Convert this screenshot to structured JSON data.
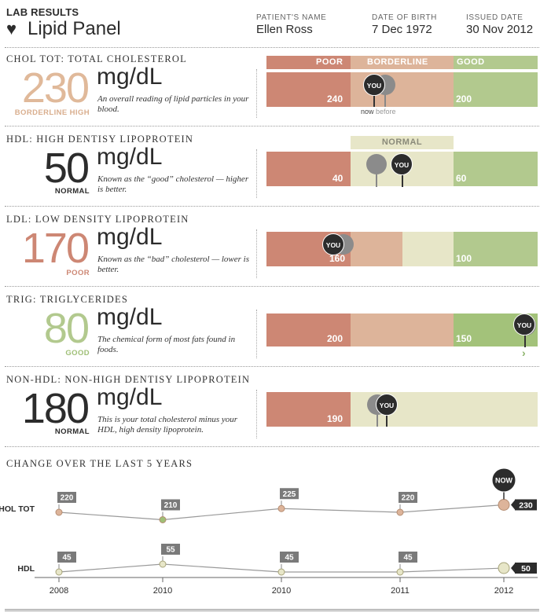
{
  "header": {
    "lab_results": "LAB RESULTS",
    "title": "Lipid Panel",
    "patient_label": "PATIENT'S NAME",
    "patient_name": "Ellen Ross",
    "dob_label": "DATE OF BIRTH",
    "dob": "7 Dec 1972",
    "issued_label": "ISSUED DATE",
    "issued": "30 Nov 2012"
  },
  "legend": {
    "poor": "POOR",
    "borderline": "BORDERLINE",
    "good": "GOOD",
    "normal": "NORMAL"
  },
  "you_label": "YOU",
  "now_label": "now",
  "before_label": "before",
  "colors": {
    "poor": "#cd8774",
    "borderline": "#ddb49a",
    "good": "#b2c98e",
    "normal": "#e7e6c8",
    "dark": "#2c2c2c"
  },
  "sections": [
    {
      "title": "CHOL TOT: TOTAL CHOLESTEROL",
      "value": "230",
      "unit": "mg/dL",
      "status": "BORDERLINE HIGH",
      "description": "An overall reading of lipid particles in your blood.",
      "bar_labels": [
        "240",
        "200"
      ]
    },
    {
      "title": "HDL: HIGH DENTISY LIPOPROTEIN",
      "value": "50",
      "unit": "mg/dL",
      "status": "NORMAL",
      "description": "Known as the “good” cholesterol — higher is better.",
      "bar_labels": [
        "40",
        "60"
      ]
    },
    {
      "title": "LDL: LOW DENSITY LIPOPROTEIN",
      "value": "170",
      "unit": "mg/dL",
      "status": "POOR",
      "description": "Known as the “bad” cholesterol — lower is better.",
      "bar_labels": [
        "160",
        "100"
      ]
    },
    {
      "title": "TRIG: TRIGLYCERIDES",
      "value": "80",
      "unit": "mg/dL",
      "status": "GOOD",
      "description": "The chemical form of most fats found in foods.",
      "bar_labels": [
        "200",
        "150"
      ]
    },
    {
      "title": "NON-HDL: NON-HIGH DENTISY LIPOPROTEIN",
      "value": "180",
      "unit": "mg/dL",
      "status": "NORMAL",
      "description": "This is your total cholesterol minus your HDL, high density lipoprotein.",
      "bar_labels": [
        "190"
      ]
    }
  ],
  "chart_title": "CHANGE OVER THE LAST 5 YEARS",
  "chart_data": {
    "type": "line",
    "x": [
      "2008",
      "2010",
      "2010",
      "2011",
      "2012"
    ],
    "now_label": "NOW",
    "series": [
      {
        "name": "CHOL TOT",
        "values": [
          220,
          210,
          225,
          220,
          230
        ]
      },
      {
        "name": "HDL",
        "values": [
          45,
          55,
          45,
          45,
          50
        ]
      }
    ]
  }
}
